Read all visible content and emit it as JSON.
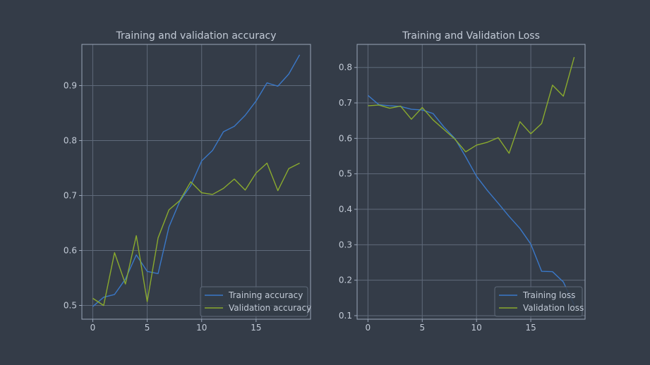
{
  "theme": {
    "background": "#343c48",
    "axes_edge": "#9aa6b8",
    "grid": "#5f6a7a",
    "text": "#c2cad6",
    "legend_bg": "#343c48",
    "legend_edge": "#5f6a7a"
  },
  "chart_data": [
    {
      "type": "line",
      "title": "Training and validation accuracy",
      "xlabel": "",
      "ylabel": "",
      "xlim": [
        -1,
        20
      ],
      "ylim": [
        0.475,
        0.975
      ],
      "xticks": [
        0,
        5,
        10,
        15
      ],
      "xtick_labels": [
        "0",
        "5",
        "10",
        "15"
      ],
      "yticks": [
        0.5,
        0.6,
        0.7,
        0.8,
        0.9
      ],
      "ytick_labels": [
        "0.5",
        "0.6",
        "0.7",
        "0.8",
        "0.9"
      ],
      "grid": true,
      "legend_position": "lower-right",
      "x": [
        0,
        1,
        2,
        3,
        4,
        5,
        6,
        7,
        8,
        9,
        10,
        11,
        12,
        13,
        14,
        15,
        16,
        17,
        18,
        19
      ],
      "series": [
        {
          "name": "Training accuracy",
          "color": "#3a78c8",
          "values": [
            0.498,
            0.515,
            0.52,
            0.548,
            0.592,
            0.562,
            0.558,
            0.643,
            0.69,
            0.718,
            0.763,
            0.782,
            0.816,
            0.826,
            0.846,
            0.872,
            0.905,
            0.899,
            0.921,
            0.956
          ]
        },
        {
          "name": "Validation accuracy",
          "color": "#8aaa2e",
          "values": [
            0.513,
            0.5,
            0.596,
            0.539,
            0.627,
            0.507,
            0.623,
            0.674,
            0.691,
            0.725,
            0.705,
            0.702,
            0.713,
            0.73,
            0.71,
            0.741,
            0.759,
            0.709,
            0.749,
            0.759
          ]
        }
      ]
    },
    {
      "type": "line",
      "title": "Training and Validation Loss",
      "xlabel": "",
      "ylabel": "",
      "xlim": [
        -1,
        20
      ],
      "ylim": [
        0.09,
        0.865
      ],
      "xticks": [
        0,
        5,
        10,
        15
      ],
      "xtick_labels": [
        "0",
        "5",
        "10",
        "15"
      ],
      "yticks": [
        0.1,
        0.2,
        0.3,
        0.4,
        0.5,
        0.6,
        0.7,
        0.8
      ],
      "ytick_labels": [
        "0.1",
        "0.2",
        "0.3",
        "0.4",
        "0.5",
        "0.6",
        "0.7",
        "0.8"
      ],
      "grid": true,
      "legend_position": "lower-right",
      "x": [
        0,
        1,
        2,
        3,
        4,
        5,
        6,
        7,
        8,
        9,
        10,
        11,
        12,
        13,
        14,
        15,
        16,
        17,
        18,
        19
      ],
      "series": [
        {
          "name": "Training loss",
          "color": "#3a78c8",
          "values": [
            0.721,
            0.695,
            0.692,
            0.69,
            0.682,
            0.68,
            0.67,
            0.632,
            0.6,
            0.548,
            0.493,
            0.453,
            0.417,
            0.38,
            0.346,
            0.302,
            0.225,
            0.224,
            0.195,
            0.13
          ]
        },
        {
          "name": "Validation loss",
          "color": "#8aaa2e",
          "values": [
            0.692,
            0.694,
            0.685,
            0.691,
            0.654,
            0.687,
            0.652,
            0.625,
            0.598,
            0.562,
            0.581,
            0.589,
            0.602,
            0.558,
            0.647,
            0.613,
            0.642,
            0.75,
            0.719,
            0.829
          ]
        }
      ]
    }
  ]
}
